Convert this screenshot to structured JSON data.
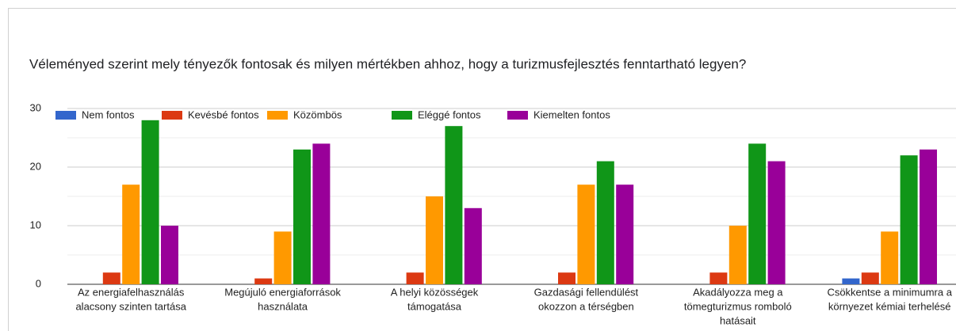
{
  "chart_data": {
    "type": "bar",
    "title": "Véleményed szerint mely tényezők fontosak és milyen mértékben ahhoz, hogy a turizmusfejlesztés fenntartható legyen?",
    "categories": [
      [
        "Az energiafelhasználás",
        "alacsony szinten tartása"
      ],
      [
        "Megújuló energiaforrások",
        "használata"
      ],
      [
        "A helyi közösségek",
        "támogatása"
      ],
      [
        "Gazdasági fellendülést",
        "okozzon a térségben"
      ],
      [
        "Akadályozza meg a",
        "tömegturizmus romboló",
        "hatásait"
      ],
      [
        "Csökkentse a minimumra a",
        "környezet kémiai terhelésé"
      ]
    ],
    "series": [
      {
        "name": "Nem fontos",
        "color": "#3366cc",
        "values": [
          0,
          0,
          0,
          0,
          0,
          1
        ]
      },
      {
        "name": "Kevésbé fontos",
        "color": "#dc3912",
        "values": [
          2,
          1,
          2,
          2,
          2,
          2
        ]
      },
      {
        "name": "Közömbös",
        "color": "#ff9900",
        "values": [
          17,
          9,
          15,
          17,
          10,
          9
        ]
      },
      {
        "name": "Eléggé fontos",
        "color": "#109618",
        "values": [
          28,
          23,
          27,
          21,
          24,
          22
        ]
      },
      {
        "name": "Kiemelten fontos",
        "color": "#990099",
        "values": [
          10,
          24,
          13,
          17,
          21,
          23
        ]
      }
    ],
    "ylim": [
      0,
      30
    ],
    "yticks": [
      0,
      10,
      20,
      30
    ],
    "minor_yticks": [
      5,
      15,
      25
    ],
    "grid": true,
    "legend": "top-left"
  }
}
